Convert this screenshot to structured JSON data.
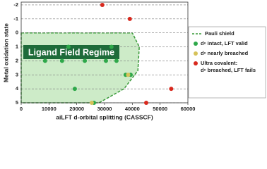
{
  "chart_data": {
    "type": "scatter",
    "x_label": "aiLFT d-orbital splitting (CASSCF)",
    "y_label": "Metal oxidation state",
    "xlim": [
      0,
      60000
    ],
    "xticks": [
      0,
      10000,
      20000,
      30000,
      40000,
      50000,
      60000
    ],
    "ylim": [
      -2.2,
      5
    ],
    "yticks": [
      -2,
      -1,
      0,
      1,
      2,
      3,
      4,
      5
    ],
    "grid": true,
    "shield": {
      "name": "Pauli shield",
      "color": "#3a9a3a",
      "fill": "#cdebc8",
      "x": [
        0,
        40000,
        42500,
        42000,
        37000,
        28000,
        0
      ],
      "y": [
        0,
        0,
        1,
        2.7,
        4,
        5,
        5
      ]
    },
    "series": [
      {
        "name": "dⁿ intact, LFT valid",
        "color": "#2ea84a",
        "x": [
          17000,
          32500,
          8600,
          14700,
          22900,
          30500,
          34300,
          37600,
          39400,
          19300,
          26200
        ],
        "y": [
          1,
          1,
          2,
          2,
          2,
          2,
          2,
          3,
          3,
          4,
          5
        ]
      },
      {
        "name": "dⁿ nearly breached",
        "color": "#d6c25a",
        "x": [
          38500,
          25400
        ],
        "y": [
          3,
          5
        ]
      },
      {
        "name": "Ultra covalent:",
        "color": "#d8291e",
        "x": [
          29200,
          39100,
          54000,
          45000
        ],
        "y": [
          -2,
          -1,
          4,
          5
        ]
      }
    ],
    "annotations": [
      "Ligand Field Regime",
      "dⁿ breached, LFT fails"
    ]
  }
}
